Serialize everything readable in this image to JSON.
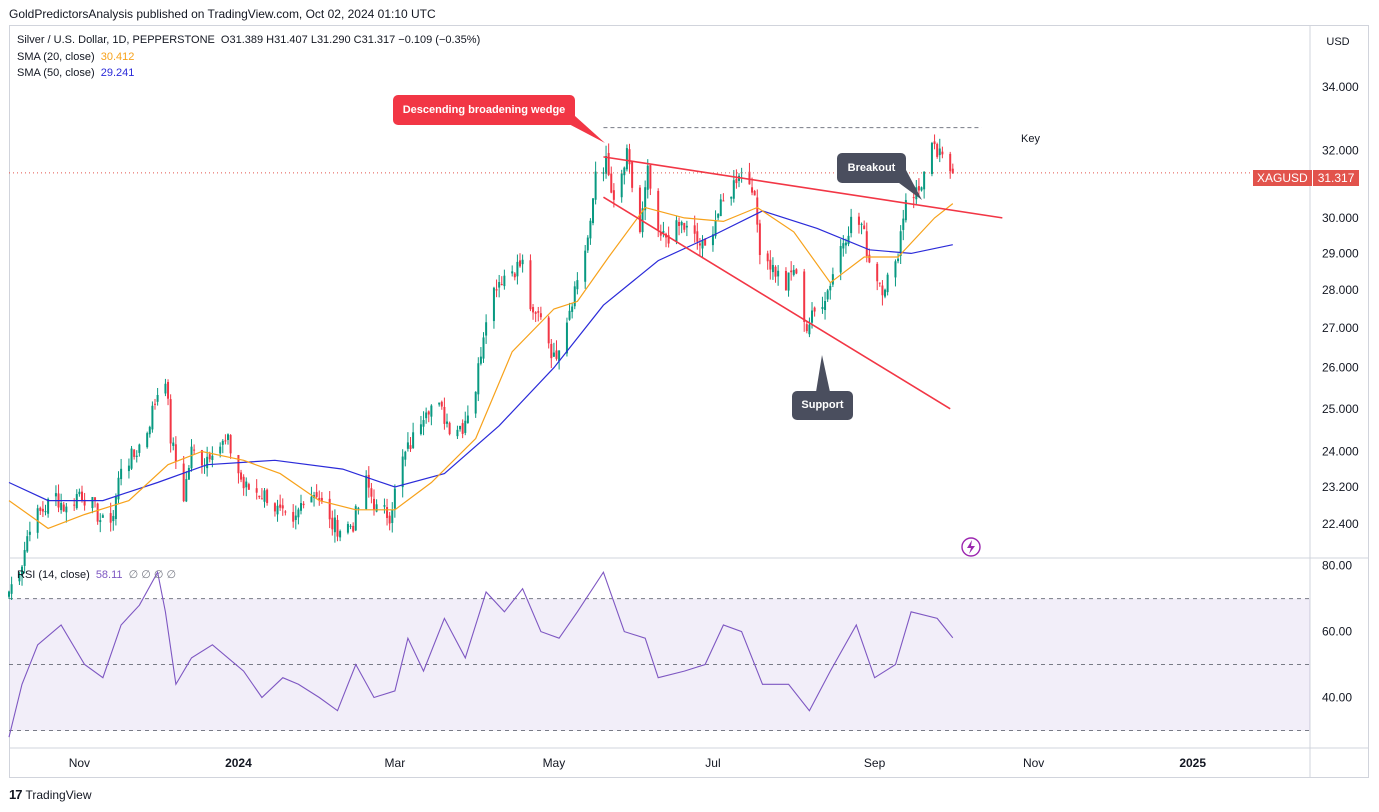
{
  "publisher_line": "GoldPredictorsAnalysis published on TradingView.com, Oct 02, 2024 01:10 UTC",
  "footer_brand": "TradingView",
  "footer_logo": "17",
  "legend": {
    "symbol_line": "Silver / U.S. Dollar, 1D, PEPPERSTONE",
    "ohlc": "O31.389  H31.407  L31.290  C31.317  −0.109 (−0.35%)",
    "sma20_label": "SMA (20, close)",
    "sma20_value": "30.412",
    "sma50_label": "SMA (50, close)",
    "sma50_value": "29.241",
    "rsi_label": "RSI (14, close)",
    "rsi_value": "58.11",
    "rsi_extra": "∅  ∅  ∅  ∅"
  },
  "currency": "USD",
  "last_price_tag": {
    "symbol": "XAGUSD",
    "value": "31.317",
    "price": 31.317
  },
  "annotations": {
    "wedge_label": "Descending broadening wedge",
    "breakout_label": "Breakout",
    "support_label": "Support",
    "key_label": "Key"
  },
  "colors": {
    "up": "#089981",
    "down": "#f23645",
    "sma20": "#f7a21b",
    "sma50": "#2b2bd9",
    "rsi": "#7e57c2",
    "trendline": "#f23645",
    "wedge_callout": "#f23645",
    "dark_callout": "#4a4e5e",
    "price_tag": "#e2534c"
  },
  "chart_data": [
    {
      "type": "candlestick",
      "title": "Silver / U.S. Dollar, 1D, PEPPERSTONE",
      "y_scale": "log",
      "ylim": [
        21.7,
        36.0
      ],
      "y_ticks": [
        "34.000",
        "32.000",
        "30.000",
        "29.000",
        "28.000",
        "27.000",
        "26.000",
        "25.000",
        "24.000",
        "23.200",
        "22.400"
      ],
      "x_ticks": [
        "Nov",
        "2024",
        "Mar",
        "May",
        "Jul",
        "Sep",
        "Nov",
        "2025"
      ],
      "x_range": [
        "2023-10-05",
        "2025-02-15"
      ],
      "close_path": [
        [
          "2023-10-05",
          21.0
        ],
        [
          "2023-10-10",
          21.6
        ],
        [
          "2023-10-13",
          22.4
        ],
        [
          "2023-10-18",
          22.7
        ],
        [
          "2023-10-23",
          23.0
        ],
        [
          "2023-10-27",
          22.7
        ],
        [
          "2023-11-01",
          23.1
        ],
        [
          "2023-11-06",
          22.8
        ],
        [
          "2023-11-10",
          22.4
        ],
        [
          "2023-11-14",
          22.6
        ],
        [
          "2023-11-17",
          23.7
        ],
        [
          "2023-11-22",
          23.9
        ],
        [
          "2023-11-27",
          24.5
        ],
        [
          "2023-12-01",
          25.4
        ],
        [
          "2023-12-04",
          25.8
        ],
        [
          "2023-12-06",
          24.3
        ],
        [
          "2023-12-11",
          23.0
        ],
        [
          "2023-12-14",
          24.0
        ],
        [
          "2023-12-19",
          23.8
        ],
        [
          "2023-12-22",
          24.1
        ],
        [
          "2023-12-28",
          24.2
        ],
        [
          "2024-01-03",
          23.2
        ],
        [
          "2024-01-08",
          23.1
        ],
        [
          "2024-01-12",
          23.0
        ],
        [
          "2024-01-17",
          22.6
        ],
        [
          "2024-01-22",
          22.3
        ],
        [
          "2024-01-26",
          23.0
        ],
        [
          "2024-01-31",
          23.1
        ],
        [
          "2024-02-05",
          22.4
        ],
        [
          "2024-02-09",
          22.3
        ],
        [
          "2024-02-14",
          22.4
        ],
        [
          "2024-02-19",
          23.3
        ],
        [
          "2024-02-23",
          22.7
        ],
        [
          "2024-02-28",
          22.6
        ],
        [
          "2024-03-04",
          23.8
        ],
        [
          "2024-03-08",
          24.3
        ],
        [
          "2024-03-13",
          25.1
        ],
        [
          "2024-03-18",
          25.0
        ],
        [
          "2024-03-22",
          24.6
        ],
        [
          "2024-03-27",
          24.6
        ],
        [
          "2024-04-01",
          25.5
        ],
        [
          "2024-04-05",
          27.4
        ],
        [
          "2024-04-09",
          28.2
        ],
        [
          "2024-04-12",
          28.4
        ],
        [
          "2024-04-16",
          28.6
        ],
        [
          "2024-04-19",
          28.7
        ],
        [
          "2024-04-23",
          27.2
        ],
        [
          "2024-04-26",
          27.4
        ],
        [
          "2024-05-01",
          26.2
        ],
        [
          "2024-05-06",
          27.3
        ],
        [
          "2024-05-10",
          28.3
        ],
        [
          "2024-05-15",
          29.7
        ],
        [
          "2024-05-17",
          31.4
        ],
        [
          "2024-05-21",
          31.6
        ],
        [
          "2024-05-24",
          30.3
        ],
        [
          "2024-05-29",
          31.8
        ],
        [
          "2024-06-03",
          29.6
        ],
        [
          "2024-06-06",
          31.3
        ],
        [
          "2024-06-10",
          29.4
        ],
        [
          "2024-06-14",
          29.5
        ],
        [
          "2024-06-19",
          29.8
        ],
        [
          "2024-06-24",
          29.4
        ],
        [
          "2024-06-28",
          29.1
        ],
        [
          "2024-07-02",
          30.0
        ],
        [
          "2024-07-08",
          30.8
        ],
        [
          "2024-07-11",
          31.4
        ],
        [
          "2024-07-16",
          31.0
        ],
        [
          "2024-07-19",
          29.2
        ],
        [
          "2024-07-24",
          28.6
        ],
        [
          "2024-07-29",
          28.1
        ],
        [
          "2024-08-01",
          28.6
        ],
        [
          "2024-08-06",
          27.0
        ],
        [
          "2024-08-09",
          27.4
        ],
        [
          "2024-08-14",
          28.0
        ],
        [
          "2024-08-19",
          29.2
        ],
        [
          "2024-08-23",
          29.9
        ],
        [
          "2024-08-27",
          29.8
        ],
        [
          "2024-08-30",
          28.8
        ],
        [
          "2024-09-04",
          28.1
        ],
        [
          "2024-09-09",
          28.6
        ],
        [
          "2024-09-13",
          30.6
        ],
        [
          "2024-09-18",
          30.8
        ],
        [
          "2024-09-23",
          32.0
        ],
        [
          "2024-09-26",
          31.8
        ],
        [
          "2024-10-01",
          31.317
        ]
      ],
      "sma20_path": [
        [
          "2023-10-05",
          22.9
        ],
        [
          "2023-10-20",
          22.3
        ],
        [
          "2023-11-03",
          22.6
        ],
        [
          "2023-11-20",
          22.9
        ],
        [
          "2023-12-05",
          23.7
        ],
        [
          "2023-12-18",
          24.0
        ],
        [
          "2024-01-03",
          23.8
        ],
        [
          "2024-01-17",
          23.5
        ],
        [
          "2024-02-01",
          22.9
        ],
        [
          "2024-02-15",
          22.7
        ],
        [
          "2024-03-01",
          22.7
        ],
        [
          "2024-03-15",
          23.3
        ],
        [
          "2024-04-01",
          24.3
        ],
        [
          "2024-04-15",
          26.4
        ],
        [
          "2024-05-01",
          27.5
        ],
        [
          "2024-05-10",
          27.7
        ],
        [
          "2024-05-22",
          28.9
        ],
        [
          "2024-06-05",
          30.3
        ],
        [
          "2024-06-20",
          30.0
        ],
        [
          "2024-07-05",
          29.9
        ],
        [
          "2024-07-18",
          30.3
        ],
        [
          "2024-08-01",
          29.6
        ],
        [
          "2024-08-15",
          28.2
        ],
        [
          "2024-08-28",
          28.9
        ],
        [
          "2024-09-10",
          28.9
        ],
        [
          "2024-09-24",
          30.0
        ],
        [
          "2024-10-01",
          30.412
        ]
      ],
      "sma50_path": [
        [
          "2023-10-05",
          23.3
        ],
        [
          "2023-10-20",
          22.9
        ],
        [
          "2023-11-10",
          22.9
        ],
        [
          "2023-12-01",
          23.3
        ],
        [
          "2023-12-20",
          23.7
        ],
        [
          "2024-01-15",
          23.8
        ],
        [
          "2024-02-10",
          23.6
        ],
        [
          "2024-03-01",
          23.2
        ],
        [
          "2024-03-20",
          23.5
        ],
        [
          "2024-04-10",
          24.6
        ],
        [
          "2024-05-01",
          26.0
        ],
        [
          "2024-05-20",
          27.6
        ],
        [
          "2024-06-10",
          28.8
        ],
        [
          "2024-07-01",
          29.5
        ],
        [
          "2024-07-20",
          30.2
        ],
        [
          "2024-08-10",
          29.7
        ],
        [
          "2024-08-30",
          29.1
        ],
        [
          "2024-09-15",
          29.0
        ],
        [
          "2024-10-01",
          29.241
        ]
      ],
      "trendlines": [
        {
          "name": "upper",
          "from": [
            "2024-05-20",
            31.8
          ],
          "to": [
            "2024-10-20",
            30.0
          ]
        },
        {
          "name": "lower",
          "from": [
            "2024-05-20",
            30.6
          ],
          "to": [
            "2024-09-30",
            25.0
          ]
        },
        {
          "name": "key",
          "from": [
            "2024-05-20",
            32.7
          ],
          "to": [
            "2024-10-12",
            32.7
          ]
        }
      ],
      "last_price": 31.317
    },
    {
      "type": "line",
      "title": "RSI (14, close)",
      "ylim": [
        25,
        82
      ],
      "y_ticks": [
        "80.00",
        "60.00",
        "40.00"
      ],
      "bands": [
        30,
        50,
        70
      ],
      "x": [
        "2023-10-05",
        "2023-10-10",
        "2023-10-16",
        "2023-10-25",
        "2023-11-03",
        "2023-11-10",
        "2023-11-17",
        "2023-11-24",
        "2023-12-01",
        "2023-12-04",
        "2023-12-08",
        "2023-12-14",
        "2023-12-22",
        "2024-01-03",
        "2024-01-10",
        "2024-01-18",
        "2024-01-24",
        "2024-02-01",
        "2024-02-08",
        "2024-02-15",
        "2024-02-22",
        "2024-03-01",
        "2024-03-06",
        "2024-03-12",
        "2024-03-20",
        "2024-03-28",
        "2024-04-05",
        "2024-04-12",
        "2024-04-19",
        "2024-04-26",
        "2024-05-03",
        "2024-05-10",
        "2024-05-20",
        "2024-05-28",
        "2024-06-05",
        "2024-06-10",
        "2024-06-20",
        "2024-06-28",
        "2024-07-05",
        "2024-07-12",
        "2024-07-20",
        "2024-07-30",
        "2024-08-07",
        "2024-08-15",
        "2024-08-25",
        "2024-09-01",
        "2024-09-09",
        "2024-09-15",
        "2024-09-25",
        "2024-10-01"
      ],
      "values": [
        28,
        44,
        56,
        62,
        50,
        46,
        62,
        68,
        78,
        66,
        44,
        52,
        56,
        48,
        40,
        46,
        44,
        40,
        36,
        50,
        40,
        42,
        58,
        48,
        64,
        52,
        72,
        66,
        73,
        60,
        58,
        66,
        78,
        60,
        58,
        46,
        48,
        50,
        62,
        60,
        44,
        44,
        36,
        48,
        62,
        46,
        50,
        66,
        64,
        58.11
      ]
    }
  ]
}
